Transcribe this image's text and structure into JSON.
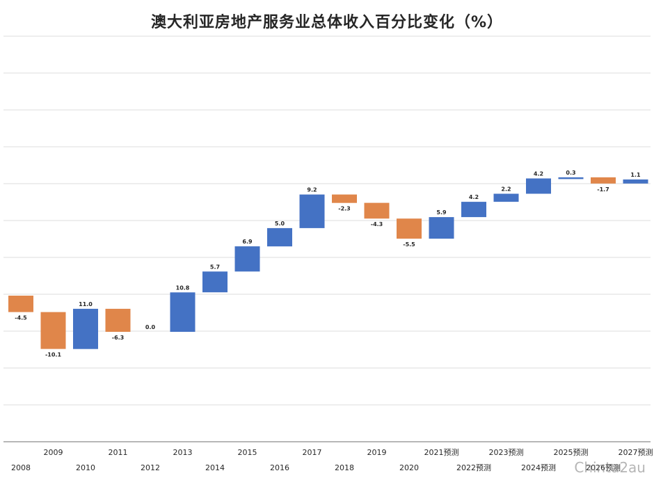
{
  "chart_data": {
    "type": "bar",
    "subtype": "waterfall",
    "title": "澳大利亚房地产服务业总体收入百分比变化（%）",
    "categories": [
      "2008",
      "2009",
      "2010",
      "2011",
      "2012",
      "2013",
      "2014",
      "2015",
      "2016",
      "2017",
      "2018",
      "2019",
      "2020",
      "2021预测",
      "2022预测",
      "2023预测",
      "2024预测",
      "2025预测",
      "2026预测",
      "2027预测"
    ],
    "values": [
      -4.5,
      -10.1,
      11.0,
      -6.3,
      0.0,
      10.8,
      5.7,
      6.9,
      5.0,
      9.2,
      -2.3,
      -4.3,
      -5.5,
      5.9,
      4.2,
      2.2,
      4.2,
      0.3,
      -1.7,
      1.1
    ],
    "value_labels": [
      "-4.5",
      "-10.1",
      "11.0",
      "-6.3",
      "0.0",
      "10.8",
      "5.7",
      "6.9",
      "5.0",
      "9.2",
      "-2.3",
      "-4.3",
      "-5.5",
      "5.9",
      "4.2",
      "2.2",
      "4.2",
      "0.3",
      "-1.7",
      "1.1"
    ],
    "cumulative_start": 0,
    "colors": {
      "increase": "#4472C4",
      "decrease": "#E0864A",
      "grid": "#d0d0d0",
      "axis": "#8c8c8c",
      "text": "#262626"
    },
    "grid": true,
    "legend": "none",
    "xlabel": "",
    "ylabel": ""
  },
  "watermark": "Chinta2au"
}
